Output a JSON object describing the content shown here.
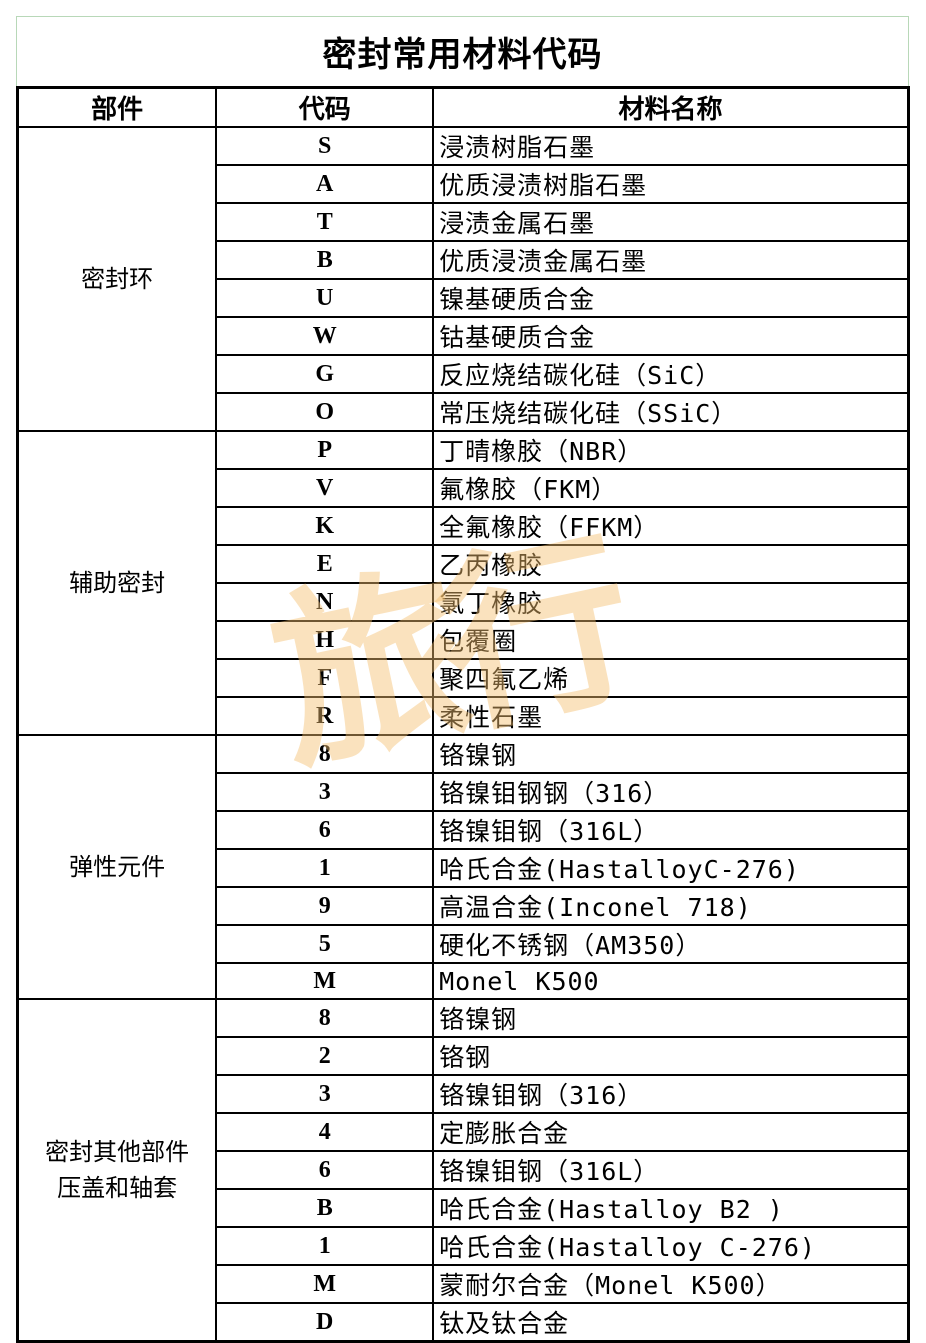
{
  "title": "密封常用材料代码",
  "headers": [
    "部件",
    "代码",
    "材料名称"
  ],
  "groups": [
    {
      "part": "密封环",
      "rows": [
        [
          "S",
          "浸渍树脂石墨"
        ],
        [
          "A",
          "优质浸渍树脂石墨"
        ],
        [
          "T",
          "浸渍金属石墨"
        ],
        [
          "B",
          "优质浸渍金属石墨"
        ],
        [
          "U",
          "镍基硬质合金"
        ],
        [
          "W",
          "钴基硬质合金"
        ],
        [
          "G",
          "反应烧结碳化硅（SiC）"
        ],
        [
          "O",
          "常压烧结碳化硅（SSiC）"
        ]
      ]
    },
    {
      "part": "辅助密封",
      "rows": [
        [
          "P",
          "丁晴橡胶（NBR）"
        ],
        [
          "V",
          "氟橡胶（FKM）"
        ],
        [
          "K",
          "全氟橡胶（FFKM）"
        ],
        [
          "E",
          "乙丙橡胶"
        ],
        [
          "N",
          "氯丁橡胶"
        ],
        [
          "H",
          "包覆圈"
        ],
        [
          "F",
          "聚四氟乙烯"
        ],
        [
          "R",
          "柔性石墨"
        ]
      ]
    },
    {
      "part": "弹性元件",
      "rows": [
        [
          "8",
          "铬镍钢"
        ],
        [
          "3",
          "铬镍钼钢钢（316）"
        ],
        [
          "6",
          "铬镍钼钢（316L）"
        ],
        [
          "1",
          "哈氏合金(HastalloyC-276)"
        ],
        [
          "9",
          "高温合金(Inconel 718)"
        ],
        [
          "5",
          "硬化不锈钢（AM350）"
        ],
        [
          "M",
          "Monel K500"
        ]
      ]
    },
    {
      "part": "密封其他部件\n压盖和轴套",
      "rows": [
        [
          "8",
          "铬镍钢"
        ],
        [
          "2",
          "铬钢"
        ],
        [
          "3",
          "铬镍钼钢（316）"
        ],
        [
          "4",
          "定膨胀合金"
        ],
        [
          "6",
          "铬镍钼钢（316L）"
        ],
        [
          "B",
          "哈氏合金(Hastalloy B2 )"
        ],
        [
          "1",
          "哈氏合金(Hastalloy C-276)"
        ],
        [
          "M",
          "蒙耐尔合金（Monel K500）"
        ],
        [
          "D",
          "钛及钛合金"
        ]
      ]
    }
  ],
  "watermark": "旅行"
}
